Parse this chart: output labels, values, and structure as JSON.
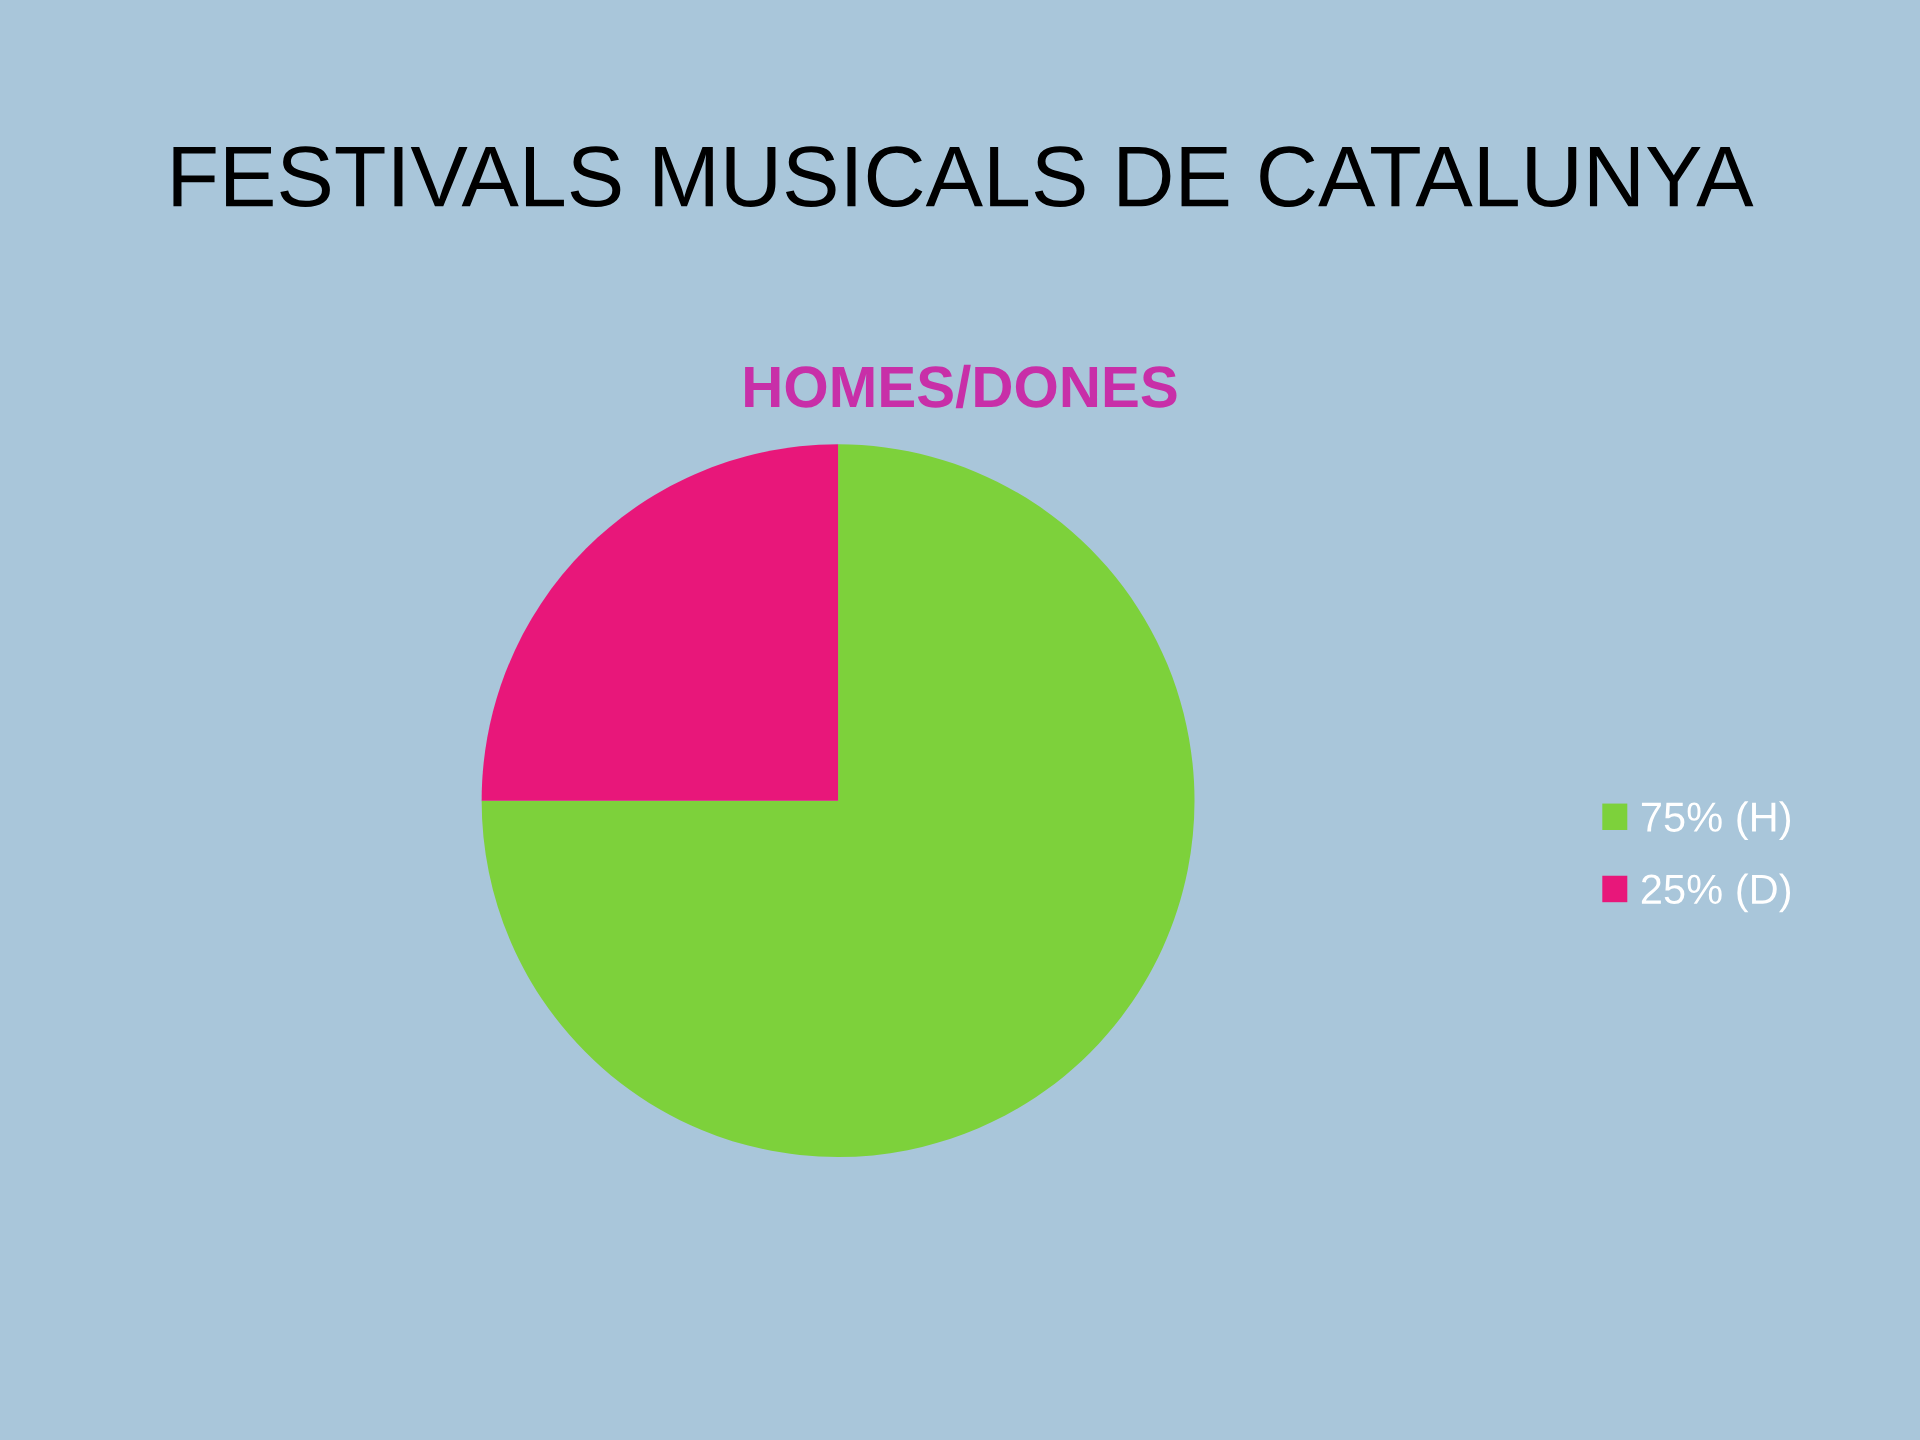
{
  "chart_data": {
    "type": "pie",
    "title": "FESTIVALS MUSICALS DE CATALUNYA",
    "subtitle": "HOMES/DONES",
    "categories": [
      "75% (H)",
      "25% (D)"
    ],
    "values": [
      75,
      25
    ],
    "colors": [
      "#7dd13b",
      "#e8177a"
    ],
    "legend": "right"
  }
}
